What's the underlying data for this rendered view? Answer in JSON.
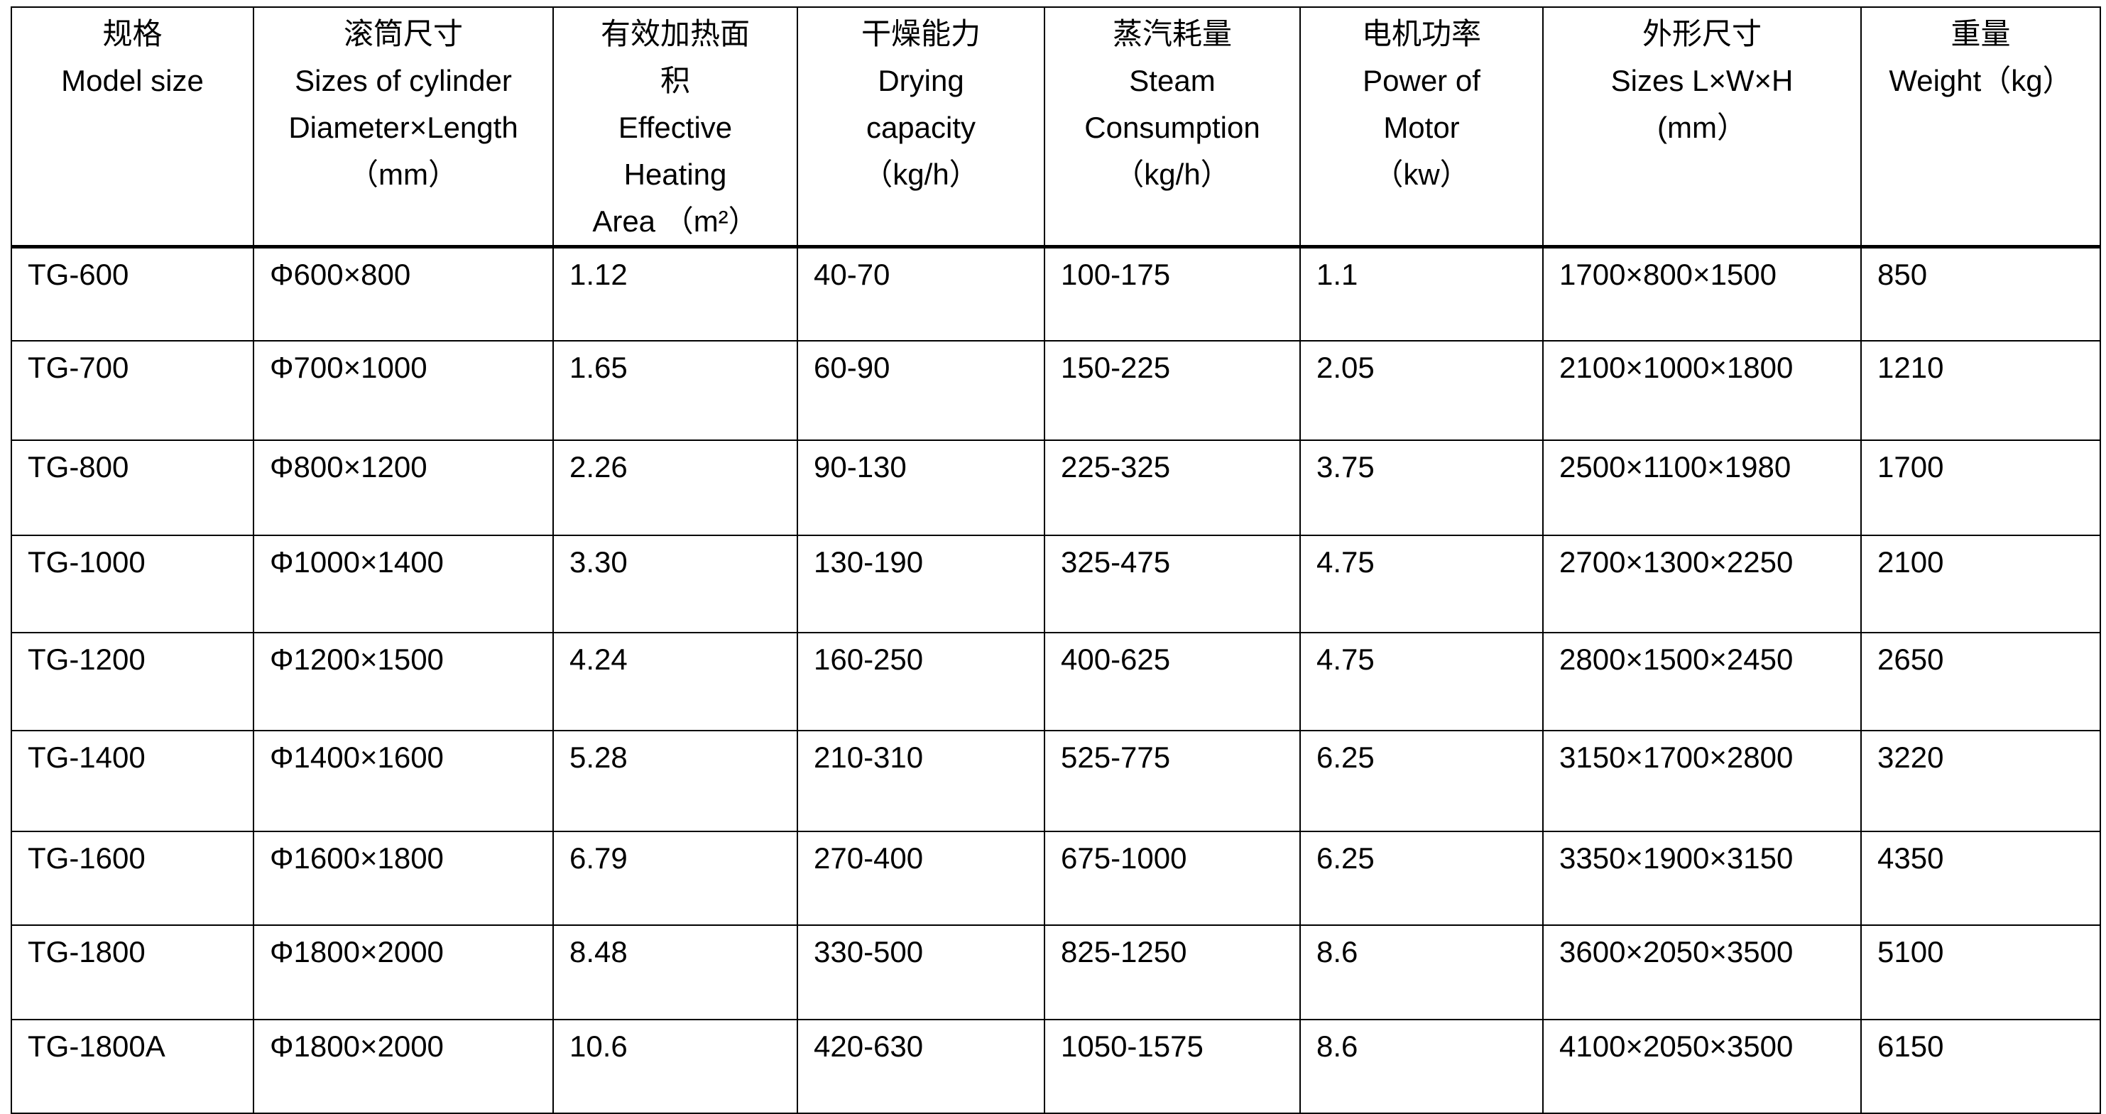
{
  "table": {
    "headers": [
      {
        "lines": [
          "规格",
          "Model size"
        ]
      },
      {
        "lines": [
          "滚筒尺寸",
          "Sizes of cylinder",
          "Diameter×Length",
          "（mm）"
        ]
      },
      {
        "lines": [
          "有效加热面",
          "积",
          "Effective",
          "Heating",
          "Area （m²）"
        ]
      },
      {
        "lines": [
          "干燥能力",
          "Drying",
          "capacity",
          "（kg/h）"
        ]
      },
      {
        "lines": [
          "蒸汽耗量",
          "Steam",
          "Consumption",
          "（kg/h）"
        ]
      },
      {
        "lines": [
          "电机功率",
          "Power of",
          "Motor",
          "（kw）"
        ]
      },
      {
        "lines": [
          "外形尺寸",
          "Sizes L×W×H",
          "(mm）"
        ]
      },
      {
        "lines": [
          "重量",
          "Weight（kg）"
        ]
      }
    ],
    "rows": [
      [
        "TG-600",
        "Φ600×800",
        "1.12",
        "40-70",
        "100-175",
        "1.1",
        "1700×800×1500",
        "850"
      ],
      [
        "TG-700",
        "Φ700×1000",
        "1.65",
        "60-90",
        "150-225",
        "2.05",
        "2100×1000×1800",
        "1210"
      ],
      [
        "TG-800",
        "Φ800×1200",
        "2.26",
        "90-130",
        "225-325",
        "3.75",
        "2500×1100×1980",
        "1700"
      ],
      [
        "TG-1000",
        "Φ1000×1400",
        "3.30",
        "130-190",
        "325-475",
        "4.75",
        "2700×1300×2250",
        "2100"
      ],
      [
        "TG-1200",
        "Φ1200×1500",
        "4.24",
        "160-250",
        "400-625",
        "4.75",
        "2800×1500×2450",
        "2650"
      ],
      [
        "TG-1400",
        "Φ1400×1600",
        "5.28",
        "210-310",
        "525-775",
        "6.25",
        "3150×1700×2800",
        "3220"
      ],
      [
        "TG-1600",
        "Φ1600×1800",
        "6.79",
        "270-400",
        "675-1000",
        "6.25",
        "3350×1900×3150",
        "4350"
      ],
      [
        "TG-1800",
        "Φ1800×2000",
        "8.48",
        "330-500",
        "825-1250",
        "8.6",
        "3600×2050×3500",
        "5100"
      ],
      [
        "TG-1800A",
        "Φ1800×2000",
        "10.6",
        "420-630",
        "1050-1575",
        "8.6",
        "4100×2050×3500",
        "6150"
      ]
    ]
  }
}
